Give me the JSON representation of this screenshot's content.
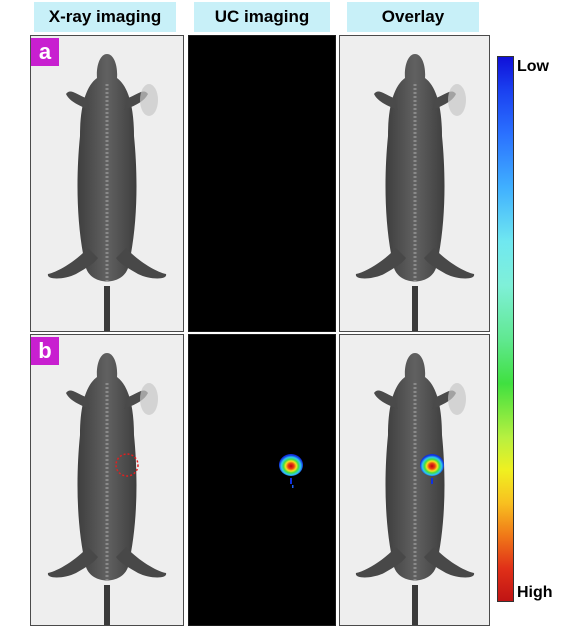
{
  "columns": {
    "xray": "X-ray imaging",
    "uc": "UC imaging",
    "overlay": "Overlay"
  },
  "rows": [
    {
      "label": "a",
      "has_signal": false
    },
    {
      "label": "b",
      "has_signal": true
    }
  ],
  "scale": {
    "top_label": "Low",
    "bottom_label": "High",
    "colors": [
      "#1010d8",
      "#40b0ff",
      "#70e8f0",
      "#40e040",
      "#f0f020",
      "#f07818",
      "#c01414"
    ]
  },
  "colors": {
    "header_bg": "#c8f0f8",
    "row_label_bg": "#c81fd0",
    "marker": "#e02020"
  }
}
